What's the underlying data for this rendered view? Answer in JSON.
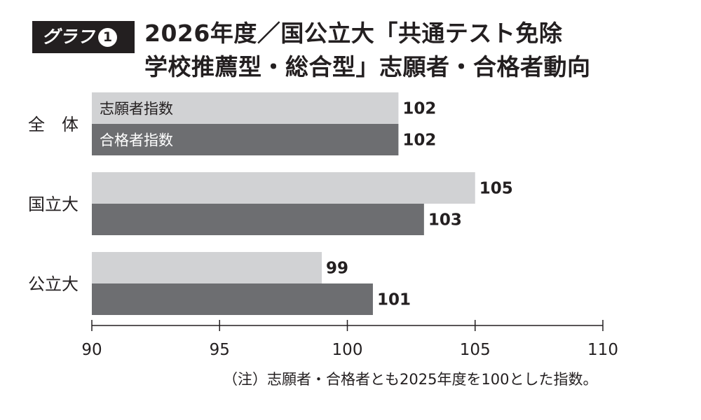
{
  "badge": {
    "label": "グラフ",
    "number": "1"
  },
  "title": {
    "line1": "2026年度／国公立大「共通テスト免除",
    "line2": "学校推薦型・総合型」志願者・合格者動向"
  },
  "note": "（注）志願者・合格者とも2025年度を100とした指数。",
  "chart_data": {
    "type": "bar",
    "orientation": "horizontal",
    "categories": [
      "全　体",
      "国立大",
      "公立大"
    ],
    "series": [
      {
        "name": "志願者指数",
        "values": [
          102,
          105,
          99
        ],
        "color": "#d1d2d4"
      },
      {
        "name": "合格者指数",
        "values": [
          102,
          103,
          101
        ],
        "color": "#6d6e71"
      }
    ],
    "xlim": [
      90,
      110
    ],
    "xticks": [
      90,
      95,
      100,
      105,
      110
    ],
    "legend_placement": "inside-first-bars",
    "grid": false
  }
}
